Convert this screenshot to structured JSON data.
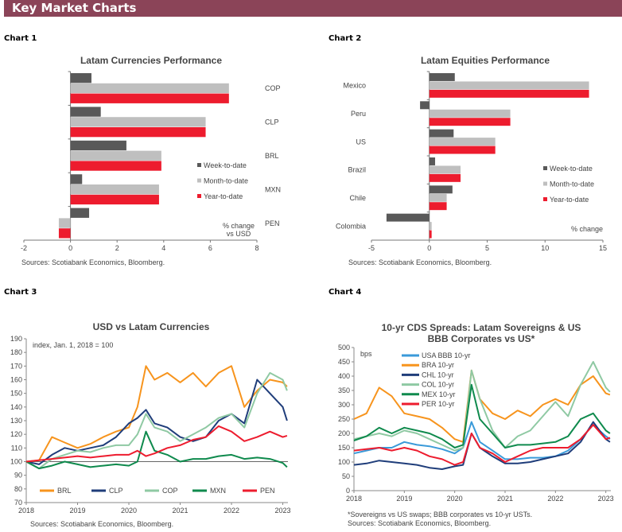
{
  "header": {
    "title": "Key Market Charts",
    "color": "#8b4458"
  },
  "chart_labels": [
    "Chart 1",
    "Chart 2",
    "Chart 3",
    "Chart 4"
  ],
  "chart_data": [
    {
      "type": "bar",
      "orientation": "horizontal",
      "title": "Latam Currencies Performance",
      "categories": [
        "COP",
        "CLP",
        "BRL",
        "MXN",
        "PEN"
      ],
      "series": [
        {
          "name": "Week-to-date",
          "color": "#595959",
          "values": [
            0.9,
            1.3,
            2.4,
            0.5,
            0.8
          ]
        },
        {
          "name": "Month-to-date",
          "color": "#bfbfbf",
          "values": [
            6.8,
            5.8,
            3.9,
            3.8,
            -0.5
          ]
        },
        {
          "name": "Year-to-date",
          "color": "#ed1c2e",
          "values": [
            6.8,
            5.8,
            3.9,
            3.8,
            -0.5
          ]
        }
      ],
      "xlim": [
        -2,
        8
      ],
      "xticks": [
        -2,
        0,
        2,
        4,
        6,
        8
      ],
      "annotation": [
        "% change",
        "vs USD"
      ],
      "legend": "right",
      "source": "Sources: Scotiabank Economics, Bloomberg."
    },
    {
      "type": "bar",
      "orientation": "horizontal",
      "title": "Latam Equities Performance",
      "categories": [
        "Mexico",
        "Peru",
        "US",
        "Brazil",
        "Chile",
        "Colombia"
      ],
      "series": [
        {
          "name": "Week-to-date",
          "color": "#595959",
          "values": [
            2.2,
            -0.8,
            2.1,
            0.5,
            2.0,
            -3.7
          ]
        },
        {
          "name": "Month-to-date",
          "color": "#bfbfbf",
          "values": [
            13.8,
            7.0,
            5.7,
            2.7,
            1.5,
            0.2
          ]
        },
        {
          "name": "Year-to-date",
          "color": "#ed1c2e",
          "values": [
            13.8,
            7.0,
            5.7,
            2.7,
            1.5,
            0.2
          ]
        }
      ],
      "xlim": [
        -5,
        15
      ],
      "xticks": [
        -5,
        0,
        5,
        10,
        15
      ],
      "annotation": [
        "% change"
      ],
      "legend": "right",
      "source": "Sources: Scotiabank Economics, Bloomberg."
    },
    {
      "type": "line",
      "title": "USD vs Latam Currencies",
      "ylabel": "index, Jan. 1, 2018 = 100",
      "x": [
        "2018-01",
        "2018-04",
        "2018-07",
        "2018-10",
        "2019-01",
        "2019-04",
        "2019-07",
        "2019-10",
        "2020-01",
        "2020-03",
        "2020-05",
        "2020-07",
        "2020-10",
        "2021-01",
        "2021-04",
        "2021-07",
        "2021-10",
        "2022-01",
        "2022-04",
        "2022-07",
        "2022-10",
        "2023-01",
        "2023-02"
      ],
      "series": [
        {
          "name": "BRL",
          "color": "#f7941d",
          "values": [
            100,
            101,
            118,
            114,
            110,
            113,
            118,
            122,
            125,
            140,
            170,
            160,
            165,
            158,
            165,
            155,
            165,
            170,
            140,
            152,
            160,
            158,
            155
          ]
        },
        {
          "name": "CLP",
          "color": "#1f3d7a",
          "values": [
            100,
            98,
            105,
            110,
            108,
            110,
            112,
            118,
            128,
            132,
            138,
            128,
            125,
            118,
            115,
            118,
            130,
            135,
            128,
            160,
            150,
            140,
            130
          ]
        },
        {
          "name": "COP",
          "color": "#8fc9a3",
          "values": [
            100,
            95,
            102,
            105,
            108,
            107,
            110,
            112,
            112,
            120,
            135,
            125,
            122,
            115,
            120,
            125,
            132,
            135,
            125,
            150,
            165,
            160,
            152
          ]
        },
        {
          "name": "MXN",
          "color": "#0f8a4d",
          "values": [
            100,
            95,
            97,
            100,
            98,
            96,
            97,
            98,
            97,
            100,
            122,
            108,
            105,
            100,
            102,
            102,
            104,
            105,
            102,
            103,
            102,
            99,
            96
          ]
        },
        {
          "name": "PEN",
          "color": "#ed1c2e",
          "values": [
            100,
            101,
            102,
            103,
            104,
            103,
            104,
            105,
            105,
            108,
            104,
            106,
            110,
            112,
            116,
            118,
            126,
            122,
            115,
            118,
            122,
            118,
            119
          ]
        }
      ],
      "ylim": [
        70,
        190
      ],
      "yticks": [
        70,
        80,
        90,
        100,
        110,
        120,
        130,
        140,
        150,
        160,
        170,
        180,
        190
      ],
      "xticks": [
        "2018",
        "2019",
        "2020",
        "2021",
        "2022",
        "2023"
      ],
      "reference_line": 100,
      "legend": "bottom",
      "source": "Sources: Scotiabank Economics, Bloomberg."
    },
    {
      "type": "line",
      "title": "10-yr CDS Spreads: Latam Sovereigns & US BBB Corporates vs US*",
      "ylabel": "bps",
      "x": [
        "2018-01",
        "2018-04",
        "2018-07",
        "2018-10",
        "2019-01",
        "2019-04",
        "2019-07",
        "2019-10",
        "2020-01",
        "2020-03",
        "2020-05",
        "2020-07",
        "2020-10",
        "2021-01",
        "2021-04",
        "2021-07",
        "2021-10",
        "2022-01",
        "2022-04",
        "2022-07",
        "2022-10",
        "2023-01",
        "2023-02"
      ],
      "series": [
        {
          "name": "USA BBB 10-yr",
          "color": "#3a9ad9",
          "values": [
            130,
            140,
            150,
            150,
            170,
            160,
            155,
            145,
            130,
            150,
            240,
            170,
            140,
            110,
            110,
            115,
            115,
            120,
            140,
            180,
            230,
            190,
            180
          ]
        },
        {
          "name": "BRA 10-yr",
          "color": "#f7941d",
          "values": [
            250,
            270,
            360,
            330,
            270,
            260,
            250,
            220,
            180,
            170,
            420,
            320,
            270,
            250,
            280,
            260,
            300,
            320,
            300,
            370,
            400,
            340,
            335
          ]
        },
        {
          "name": "CHL 10-yr",
          "color": "#1f3d7a",
          "values": [
            90,
            95,
            105,
            100,
            95,
            90,
            80,
            75,
            85,
            90,
            200,
            150,
            120,
            95,
            95,
            100,
            110,
            120,
            130,
            170,
            240,
            180,
            170
          ]
        },
        {
          "name": "COL 10-yr",
          "color": "#8fc9a3",
          "values": [
            180,
            190,
            200,
            190,
            210,
            200,
            180,
            160,
            140,
            150,
            420,
            320,
            210,
            150,
            190,
            210,
            260,
            310,
            260,
            370,
            450,
            360,
            345
          ]
        },
        {
          "name": "MEX 10-yr",
          "color": "#0f8a4d",
          "values": [
            175,
            190,
            220,
            200,
            220,
            210,
            200,
            180,
            150,
            160,
            370,
            250,
            200,
            150,
            160,
            160,
            165,
            170,
            190,
            250,
            270,
            210,
            200
          ]
        },
        {
          "name": "PER 10-yr",
          "color": "#ed1c2e",
          "values": [
            140,
            145,
            150,
            140,
            150,
            140,
            120,
            110,
            90,
            100,
            200,
            150,
            130,
            100,
            120,
            140,
            150,
            150,
            150,
            180,
            230,
            180,
            185
          ]
        }
      ],
      "ylim": [
        0,
        500
      ],
      "yticks": [
        0,
        50,
        100,
        150,
        200,
        250,
        300,
        350,
        400,
        450,
        500
      ],
      "xticks": [
        "2018",
        "2019",
        "2020",
        "2021",
        "2022",
        "2023"
      ],
      "legend": "top-left",
      "footnote": "*Sovereigns vs US swaps; BBB corporates vs 10-yr USTs.",
      "source": "Sources: Scotiabank Economics, Bloomberg."
    }
  ]
}
